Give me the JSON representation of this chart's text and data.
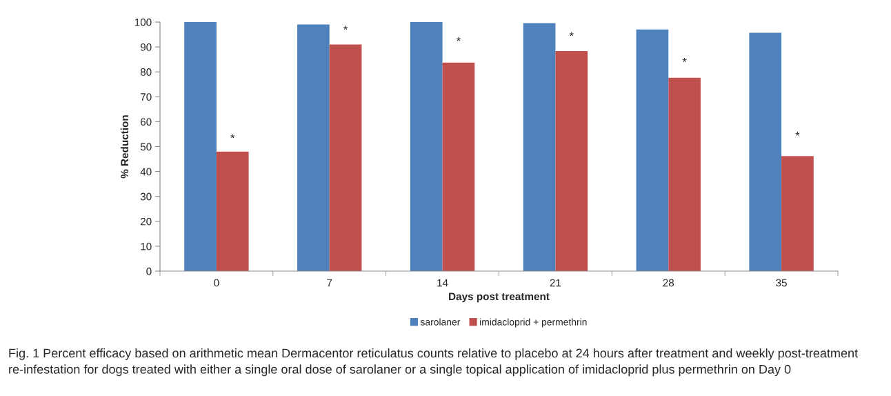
{
  "chart_data": {
    "type": "bar",
    "categories": [
      "0",
      "7",
      "14",
      "21",
      "28",
      "35"
    ],
    "series": [
      {
        "name": "sarolaner",
        "color": "#4f81bd",
        "values": [
          100,
          99,
          100,
          99.6,
          97,
          95.7
        ]
      },
      {
        "name": "imidacloprid + permethrin",
        "color": "#c0504d",
        "values": [
          48,
          91,
          83.7,
          88.4,
          77.6,
          46.2
        ]
      }
    ],
    "xlabel": "Days post treatment",
    "ylabel": "% Reduction",
    "ylim": [
      0,
      100
    ],
    "yticks": [
      0,
      10,
      20,
      30,
      40,
      50,
      60,
      70,
      80,
      90,
      100
    ],
    "grid": false,
    "legend": "bottom",
    "annotations": [
      {
        "text": "*",
        "x": "0",
        "y": 53
      },
      {
        "text": "*",
        "x": "7",
        "y": 96.6
      },
      {
        "text": "*",
        "x": "14",
        "y": 92
      },
      {
        "text": "*",
        "x": "21",
        "y": 94
      },
      {
        "text": "*",
        "x": "28",
        "y": 83.6
      },
      {
        "text": "*",
        "x": "35",
        "y": 54
      },
      "Fig. 1 Percent efficacy based on arithmetic mean Dermacentor reticulatus counts relative to placebo at 24 hours after treatment and weekly post-treatment re-infestation for dogs treated with either a single oral dose of sarolaner or a single topical application of imidacloprid plus permethrin on Day 0"
    ]
  }
}
